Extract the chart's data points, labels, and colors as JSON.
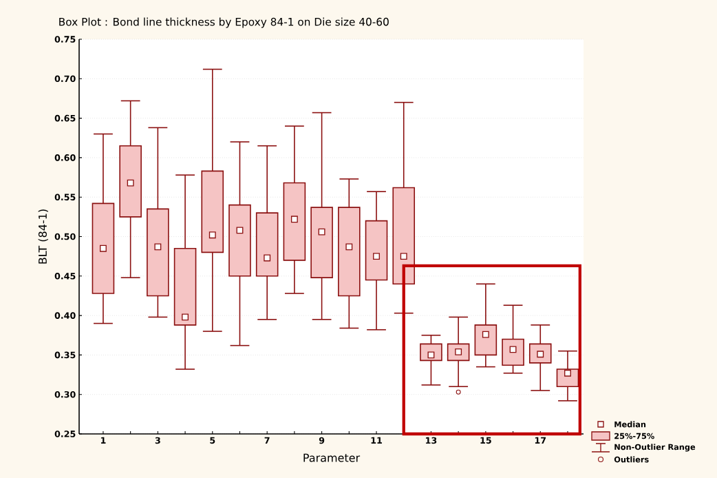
{
  "chart_data": {
    "type": "box",
    "title": "Box Plot : Bond line thickness by  Epoxy 84-1 on Die size 40-60",
    "xlabel": "Parameter",
    "ylabel": "BLT (84-1)",
    "categories": [
      "1",
      null,
      "3",
      null,
      "5",
      null,
      "7",
      null,
      "9",
      null,
      "11",
      null,
      "13",
      null,
      "15",
      null,
      "17",
      null
    ],
    "series": [
      {
        "color": "#8b1010",
        "boxes": [
          {
            "low": 0.39,
            "q1": 0.428,
            "median": 0.485,
            "q3": 0.542,
            "high": 0.63
          },
          {
            "low": 0.448,
            "q1": 0.525,
            "median": 0.568,
            "q3": 0.615,
            "high": 0.672
          },
          {
            "low": 0.398,
            "q1": 0.425,
            "median": 0.487,
            "q3": 0.535,
            "high": 0.638
          },
          {
            "low": 0.332,
            "q1": 0.388,
            "median": 0.398,
            "q3": 0.485,
            "high": 0.578
          },
          {
            "low": 0.38,
            "q1": 0.48,
            "median": 0.502,
            "q3": 0.583,
            "high": 0.712
          },
          {
            "low": 0.362,
            "q1": 0.45,
            "median": 0.508,
            "q3": 0.54,
            "high": 0.62
          },
          {
            "low": 0.395,
            "q1": 0.45,
            "median": 0.473,
            "q3": 0.53,
            "high": 0.615
          },
          {
            "low": 0.428,
            "q1": 0.47,
            "median": 0.522,
            "q3": 0.568,
            "high": 0.64
          },
          {
            "low": 0.395,
            "q1": 0.448,
            "median": 0.506,
            "q3": 0.537,
            "high": 0.657
          },
          {
            "low": 0.384,
            "q1": 0.425,
            "median": 0.487,
            "q3": 0.537,
            "high": 0.573
          },
          {
            "low": 0.382,
            "q1": 0.445,
            "median": 0.475,
            "q3": 0.52,
            "high": 0.557
          },
          {
            "low": 0.403,
            "q1": 0.44,
            "median": 0.475,
            "q3": 0.562,
            "high": 0.67
          },
          {
            "low": 0.312,
            "q1": 0.343,
            "median": 0.35,
            "q3": 0.364,
            "high": 0.375
          },
          {
            "low": 0.31,
            "q1": 0.343,
            "median": 0.354,
            "q3": 0.364,
            "high": 0.398,
            "outliers": [
              0.303
            ]
          },
          {
            "low": 0.335,
            "q1": 0.35,
            "median": 0.376,
            "q3": 0.388,
            "high": 0.44
          },
          {
            "low": 0.327,
            "q1": 0.337,
            "median": 0.357,
            "q3": 0.37,
            "high": 0.413
          },
          {
            "low": 0.305,
            "q1": 0.34,
            "median": 0.351,
            "q3": 0.364,
            "high": 0.388
          },
          {
            "low": 0.292,
            "q1": 0.31,
            "median": 0.327,
            "q3": 0.332,
            "high": 0.355
          }
        ]
      }
    ],
    "ylim": [
      0.25,
      0.75
    ],
    "yticks": [
      0.25,
      {
        "value": 0.3,
        "label": "0.30"
      },
      0.35,
      {
        "value": 0.4,
        "label": "0.40"
      },
      0.45,
      {
        "value": 0.5,
        "label": "0.50"
      },
      0.55,
      {
        "value": 0.6,
        "label": "0.60"
      },
      0.65,
      {
        "value": 0.7,
        "label": "0.70"
      },
      0.75
    ],
    "grid": "y",
    "annotations": [
      "Median",
      "25%-75%",
      "Non-Outlier Range",
      "Outliers"
    ]
  }
}
